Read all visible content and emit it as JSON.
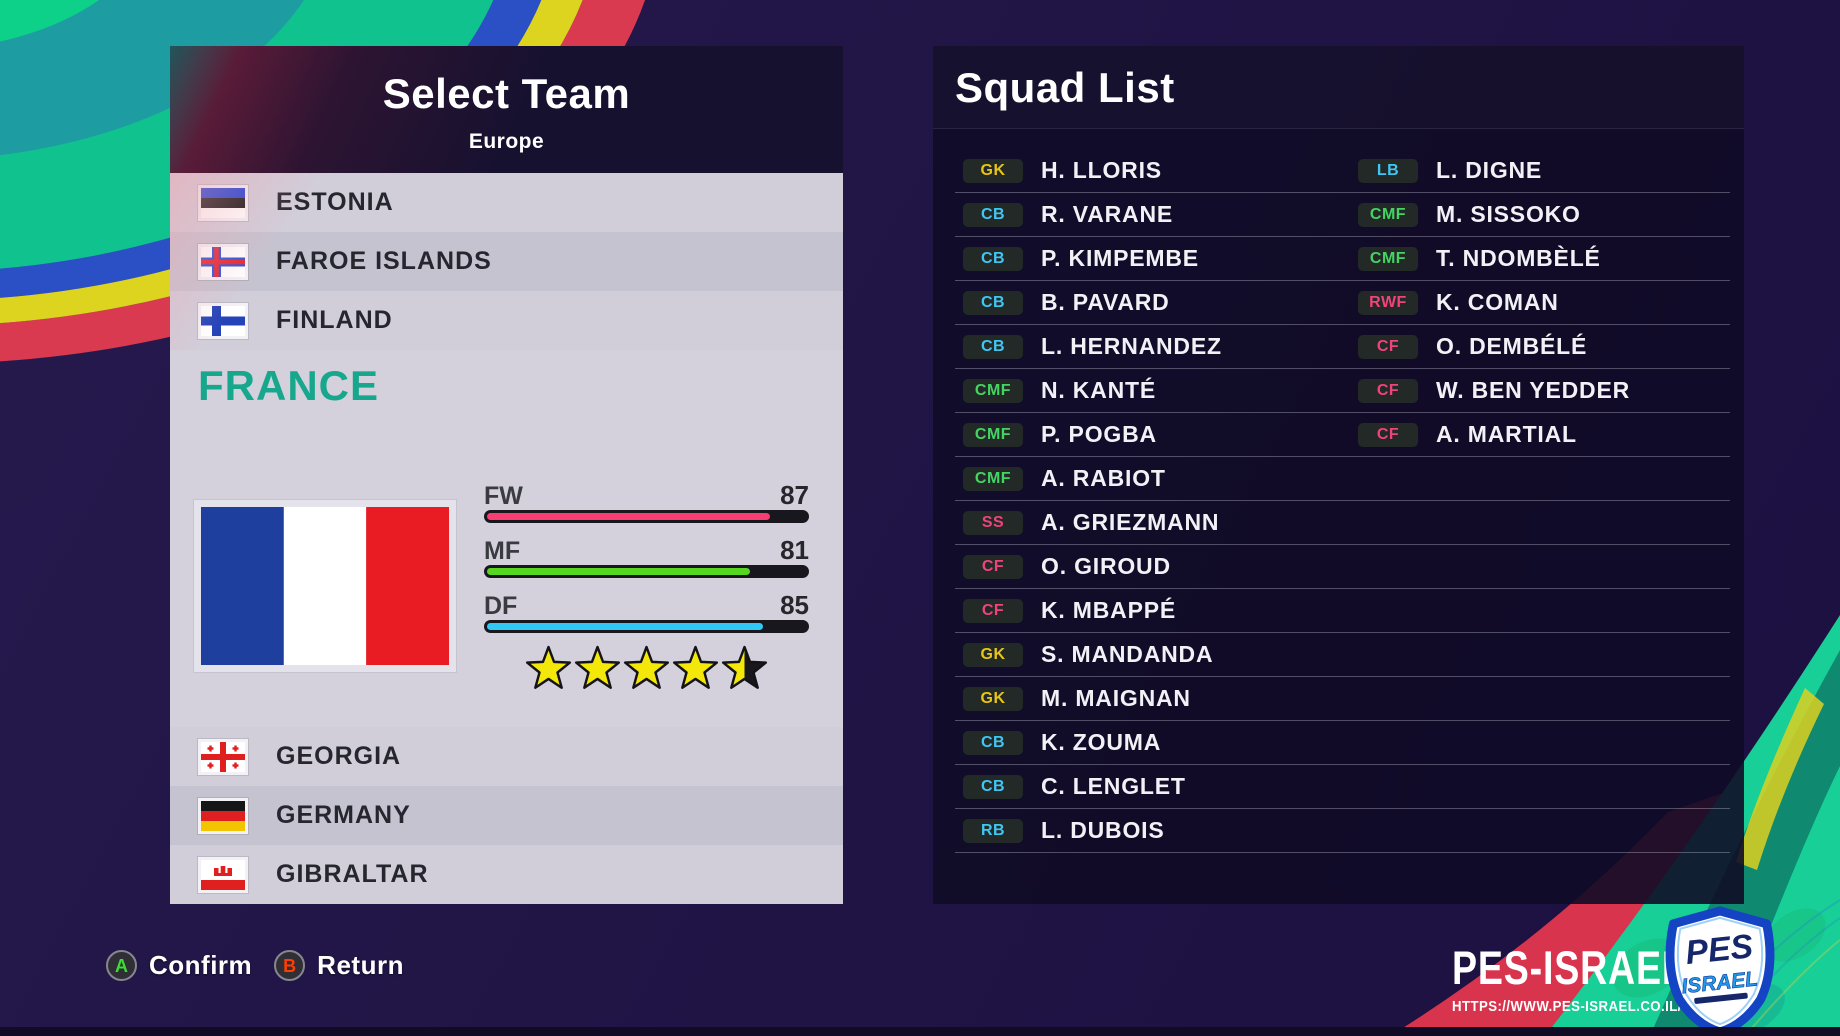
{
  "select_team": {
    "title": "Select Team",
    "region": "Europe",
    "teams_above": [
      {
        "name": "ESTONIA",
        "flag": "estonia"
      },
      {
        "name": "FAROE ISLANDS",
        "flag": "faroe-islands"
      },
      {
        "name": "FINLAND",
        "flag": "finland"
      }
    ],
    "selected_team": {
      "name": "FRANCE",
      "flag": "france",
      "name_color": "#17a78c",
      "stats": [
        {
          "label": "FW",
          "value": 87,
          "bar_color": "#f73d72"
        },
        {
          "label": "MF",
          "value": 81,
          "bar_color": "#55d61f"
        },
        {
          "label": "DF",
          "value": 85,
          "bar_color": "#30c9f5"
        }
      ],
      "star_rating": 4.5,
      "star_color": "#f4e70a"
    },
    "teams_below": [
      {
        "name": "GEORGIA",
        "flag": "georgia"
      },
      {
        "name": "GERMANY",
        "flag": "germany"
      },
      {
        "name": "GIBRALTAR",
        "flag": "gibraltar"
      }
    ]
  },
  "squad_list": {
    "title": "Squad List",
    "position_colors": {
      "GK": "#e8c517",
      "CB": "#3fc6f3",
      "LB": "#3fc6f3",
      "RB": "#3fc6f3",
      "CMF": "#43d463",
      "SS": "#f0437c",
      "CF": "#f0437c",
      "RWF": "#f0437c"
    },
    "left_column": [
      {
        "position": "GK",
        "name": "H. LLORIS"
      },
      {
        "position": "CB",
        "name": "R. VARANE"
      },
      {
        "position": "CB",
        "name": "P. KIMPEMBE"
      },
      {
        "position": "CB",
        "name": "B. PAVARD"
      },
      {
        "position": "CB",
        "name": "L. HERNANDEZ"
      },
      {
        "position": "CMF",
        "name": "N. KANTÉ"
      },
      {
        "position": "CMF",
        "name": "P. POGBA"
      },
      {
        "position": "CMF",
        "name": "A. RABIOT"
      },
      {
        "position": "SS",
        "name": "A. GRIEZMANN"
      },
      {
        "position": "CF",
        "name": "O. GIROUD"
      },
      {
        "position": "CF",
        "name": "K. MBAPPÉ"
      },
      {
        "position": "GK",
        "name": "S. MANDANDA"
      },
      {
        "position": "GK",
        "name": "M. MAIGNAN"
      },
      {
        "position": "CB",
        "name": "K. ZOUMA"
      },
      {
        "position": "CB",
        "name": "C. LENGLET"
      },
      {
        "position": "RB",
        "name": "L. DUBOIS"
      }
    ],
    "right_column": [
      {
        "position": "LB",
        "name": "L. DIGNE"
      },
      {
        "position": "CMF",
        "name": "M. SISSOKO"
      },
      {
        "position": "CMF",
        "name": "T. NDOMBÈLÉ"
      },
      {
        "position": "RWF",
        "name": "K. COMAN"
      },
      {
        "position": "CF",
        "name": "O. DEMBÉLÉ"
      },
      {
        "position": "CF",
        "name": "W. BEN YEDDER"
      },
      {
        "position": "CF",
        "name": "A. MARTIAL"
      }
    ]
  },
  "controls": {
    "confirm": {
      "button": "A",
      "label": "Confirm",
      "button_color": "#3bdc33"
    },
    "return": {
      "button": "B",
      "label": "Return",
      "button_color": "#ff3d00"
    }
  },
  "branding": {
    "name": "PES-ISRAEL",
    "url": "HTTPS://WWW.PES-ISRAEL.CO.IL/",
    "badge_top": "PES",
    "badge_mid": "ISRAEL"
  }
}
